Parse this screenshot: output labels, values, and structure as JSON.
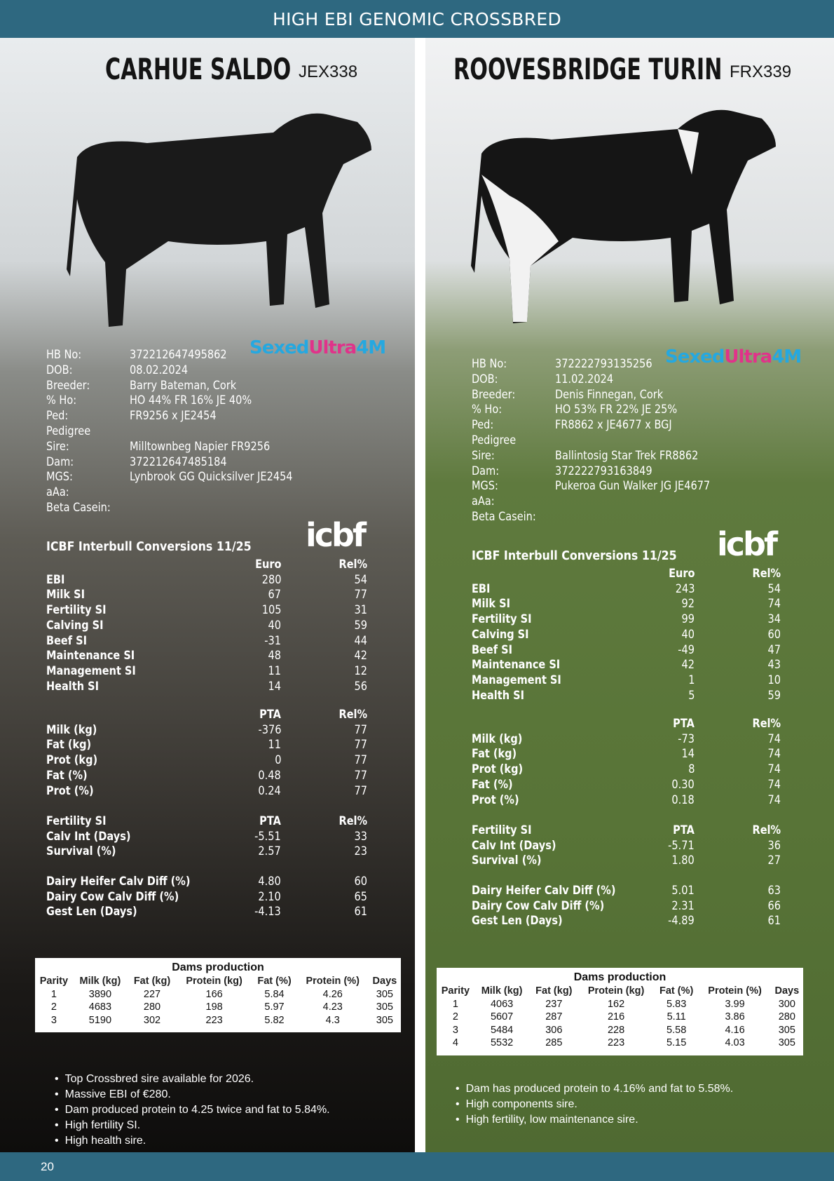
{
  "header": {
    "title": "HIGH EBI GENOMIC CROSSBRED"
  },
  "footer": {
    "page_number": "20"
  },
  "colors": {
    "header_bar": "#2e6880",
    "sexed_blue": "#25a8e0",
    "sexed_pink": "#e0338a"
  },
  "bulls": [
    {
      "name": "CARHUE SALDO",
      "code": "JEX338",
      "logo": "SexedUltra 4M",
      "info": [
        [
          "HB No:",
          "372212647495862"
        ],
        [
          "DOB:",
          "08.02.2024"
        ],
        [
          "Breeder:",
          "Barry Bateman, Cork"
        ],
        [
          "% Ho:",
          "HO 44% FR 16% JE 40%"
        ],
        [
          "Ped:",
          "FR9256 x JE2454"
        ],
        [
          "Pedigree",
          ""
        ],
        [
          "Sire:",
          "Milltownbeg Napier FR9256"
        ],
        [
          "Dam:",
          "372212647485184"
        ],
        [
          "MGS:",
          "Lynbrook GG Quicksilver JE2454"
        ],
        [
          "aAa:",
          ""
        ],
        [
          "Beta Casein:",
          ""
        ]
      ],
      "icbf_heading": "ICBF Interbull Conversions 11/25",
      "icbf_logo": "icbf",
      "groups": [
        {
          "h": [
            "",
            "Euro",
            "Rel%"
          ],
          "rows": [
            [
              "EBI",
              "280",
              "54"
            ],
            [
              "Milk SI",
              "67",
              "77"
            ],
            [
              "Fertility SI",
              "105",
              "31"
            ],
            [
              "Calving SI",
              "40",
              "59"
            ],
            [
              "Beef SI",
              "-31",
              "44"
            ],
            [
              "Maintenance SI",
              "48",
              "42"
            ],
            [
              "Management SI",
              "11",
              "12"
            ],
            [
              "Health SI",
              "14",
              "56"
            ]
          ]
        },
        {
          "h": [
            "",
            "PTA",
            "Rel%"
          ],
          "rows": [
            [
              "Milk (kg)",
              "-376",
              "77"
            ],
            [
              "Fat (kg)",
              "11",
              "77"
            ],
            [
              "Prot (kg)",
              "0",
              "77"
            ],
            [
              "Fat (%)",
              "0.48",
              "77"
            ],
            [
              "Prot (%)",
              "0.24",
              "77"
            ]
          ]
        },
        {
          "h": [
            "Fertility SI",
            "PTA",
            "Rel%"
          ],
          "rows": [
            [
              "Calv Int (Days)",
              "-5.51",
              "33"
            ],
            [
              "Survival (%)",
              "2.57",
              "23"
            ]
          ]
        },
        {
          "h": null,
          "rows": [
            [
              "Dairy Heifer Calv Diff (%)",
              "4.80",
              "60"
            ],
            [
              "Dairy Cow Calv Diff (%)",
              "2.10",
              "65"
            ],
            [
              "Gest Len (Days)",
              "-4.13",
              "61"
            ]
          ]
        }
      ],
      "dams": {
        "title": "Dams production",
        "columns": [
          "Parity",
          "Milk (kg)",
          "Fat (kg)",
          "Protein (kg)",
          "Fat (%)",
          "Protein (%)",
          "Days"
        ],
        "rows": [
          [
            "1",
            "3890",
            "227",
            "166",
            "5.84",
            "4.26",
            "305"
          ],
          [
            "2",
            "4683",
            "280",
            "198",
            "5.97",
            "4.23",
            "305"
          ],
          [
            "3",
            "5190",
            "302",
            "223",
            "5.82",
            "4.3",
            "305"
          ]
        ]
      },
      "bullets": [
        "Top Crossbred sire available for 2026.",
        "Massive EBI of €280.",
        "Dam produced protein to 4.25 twice and fat to 5.84%.",
        "High fertility SI.",
        "High health sire."
      ]
    },
    {
      "name": "ROOVESBRIDGE TURIN",
      "code": "FRX339",
      "logo": "SexedUltra 4M",
      "info": [
        [
          "HB No:",
          "372222793135256"
        ],
        [
          "DOB:",
          "11.02.2024"
        ],
        [
          "Breeder:",
          "Denis Finnegan, Cork"
        ],
        [
          "% Ho:",
          "HO 53% FR 22% JE 25%"
        ],
        [
          "Ped:",
          "FR8862 x JE4677 x BGJ"
        ],
        [
          "Pedigree",
          ""
        ],
        [
          "Sire:",
          "Ballintosig Star Trek FR8862"
        ],
        [
          "Dam:",
          "372222793163849"
        ],
        [
          "MGS:",
          "Pukeroa Gun Walker JG JE4677"
        ],
        [
          "aAa:",
          ""
        ],
        [
          "Beta Casein:",
          ""
        ]
      ],
      "icbf_heading": "ICBF Interbull Conversions 11/25",
      "icbf_logo": "icbf",
      "groups": [
        {
          "h": [
            "",
            "Euro",
            "Rel%"
          ],
          "rows": [
            [
              "EBI",
              "243",
              "54"
            ],
            [
              "Milk SI",
              "92",
              "74"
            ],
            [
              "Fertility SI",
              "99",
              "34"
            ],
            [
              "Calving SI",
              "40",
              "60"
            ],
            [
              "Beef SI",
              "-49",
              "47"
            ],
            [
              "Maintenance SI",
              "42",
              "43"
            ],
            [
              "Management SI",
              "1",
              "10"
            ],
            [
              "Health SI",
              "5",
              "59"
            ]
          ]
        },
        {
          "h": [
            "",
            "PTA",
            "Rel%"
          ],
          "rows": [
            [
              "Milk (kg)",
              "-73",
              "74"
            ],
            [
              "Fat (kg)",
              "14",
              "74"
            ],
            [
              "Prot (kg)",
              "8",
              "74"
            ],
            [
              "Fat (%)",
              "0.30",
              "74"
            ],
            [
              "Prot (%)",
              "0.18",
              "74"
            ]
          ]
        },
        {
          "h": [
            "Fertility SI",
            "PTA",
            "Rel%"
          ],
          "rows": [
            [
              "Calv Int (Days)",
              "-5.71",
              "36"
            ],
            [
              "Survival (%)",
              "1.80",
              "27"
            ]
          ]
        },
        {
          "h": null,
          "rows": [
            [
              "Dairy Heifer Calv Diff (%)",
              "5.01",
              "63"
            ],
            [
              "Dairy Cow Calv Diff (%)",
              "2.31",
              "66"
            ],
            [
              "Gest Len (Days)",
              "-4.89",
              "61"
            ]
          ]
        }
      ],
      "dams": {
        "title": "Dams production",
        "columns": [
          "Parity",
          "Milk (kg)",
          "Fat (kg)",
          "Protein (kg)",
          "Fat (%)",
          "Protein (%)",
          "Days"
        ],
        "rows": [
          [
            "1",
            "4063",
            "237",
            "162",
            "5.83",
            "3.99",
            "300"
          ],
          [
            "2",
            "5607",
            "287",
            "216",
            "5.11",
            "3.86",
            "280"
          ],
          [
            "3",
            "5484",
            "306",
            "228",
            "5.58",
            "4.16",
            "305"
          ],
          [
            "4",
            "5532",
            "285",
            "223",
            "5.15",
            "4.03",
            "305"
          ]
        ]
      },
      "bullets": [
        "Dam has produced protein to 4.16% and fat to 5.58%.",
        "High components sire.",
        "High fertility, low maintenance sire."
      ]
    }
  ]
}
